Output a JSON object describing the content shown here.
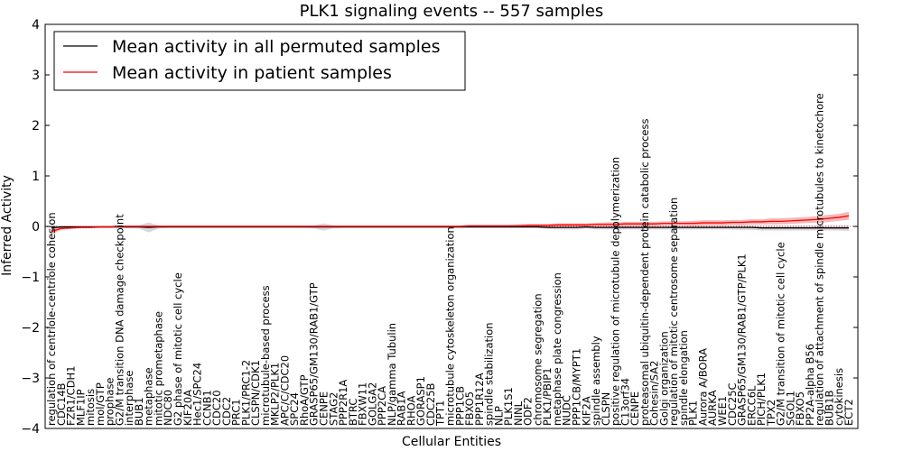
{
  "chart_data": {
    "type": "line",
    "title": "PLK1 signaling events -- 557 samples",
    "xlabel": "Cellular Entities",
    "ylabel": "Inferred Activity",
    "ylim": [
      -4,
      4
    ],
    "yticks": [
      -4,
      -3,
      -2,
      -1,
      0,
      1,
      2,
      3,
      4
    ],
    "legend_position": "top-left",
    "grid": false,
    "colors": {
      "permuted": "#000000",
      "patient": "#ff0000",
      "patient_band": "#f4a6a6",
      "permuted_band": "#c8c8d0"
    },
    "series": [
      {
        "name": "Mean activity in all permuted samples",
        "key": "permuted"
      },
      {
        "name": "Mean activity in patient samples",
        "key": "patient"
      }
    ],
    "categories": [
      "regulation of centriole-centriole cohesion",
      "CDC14B",
      "FZR1/CDH1",
      "MLF1IP",
      "mitosis",
      "mol/GTP",
      "prophase",
      "G2/M transition DNA damage checkpoint",
      "interphase",
      "BUB1",
      "metaphase",
      "mitotic prometaphase",
      "NDC80",
      "G2 phase of mitotic cell cycle",
      "KIF20A",
      "Hec1/SPC24",
      "CCNB1",
      "CDC20",
      "CDC2",
      "PRC1",
      "PLK1/PRC1-2",
      "CLSPN/CDK1",
      "microtubule-based process",
      "MKLP2/PLK1",
      "APC/C/CDC20",
      "SPC24",
      "RhoA/GTP",
      "GRASP65/GM130/RAB1/GTP",
      "CENPE",
      "STAG2",
      "PPP2R1A",
      "BTRC",
      "FBXW11",
      "GOLGA2",
      "PPP2CA",
      "NLP/gamma Tubulin",
      "RAB1A",
      "RHOA",
      "GORASP1",
      "CDC25B",
      "TPT1",
      "microtubule cytoskeleton organization",
      "PPP1CB",
      "FBXO5",
      "PPP1R12A",
      "spindle stabilization",
      "NLP",
      "PLK1S1",
      "NINL",
      "ODF2",
      "chromosome segregation",
      "PLK1/PBIP1",
      "metaphase plate congression",
      "NUDC",
      "PPP1CB/MYPT1",
      "KIF2A",
      "spindle assembly",
      "CLSPN",
      "positive regulation of microtubule depolymerization",
      "C13orf34",
      "CENPE",
      "proteasomal ubiquitin-dependent protein catabolic process",
      "Cohesin/SA2",
      "Golgi organization",
      "regulation of mitotic centrosome separation",
      "spindle elongation",
      "PLK1",
      "Aurora A/BORA",
      "AURKA",
      "WEE1",
      "CDC25C",
      "GRASP65/GM130/RAB1/GTP/PLK1",
      "ERCC6L",
      "PICH/PLK1",
      "TPX2",
      "G2/M transition of mitotic cell cycle",
      "SGOL1",
      "FBXO5",
      "PP2A-alpha B56",
      "regulation of attachment of spindle microtubules to kinetochore",
      "BUB1B",
      "cytokinesis",
      "ECT2"
    ],
    "patient_mean": [
      -0.1,
      -0.04,
      -0.03,
      -0.02,
      -0.02,
      -0.01,
      -0.01,
      0,
      0,
      0,
      0,
      0,
      0,
      0,
      0,
      0,
      0,
      0,
      0,
      0,
      0,
      0,
      0,
      0,
      0,
      0,
      0,
      0,
      0,
      0,
      0,
      0,
      0,
      0,
      0,
      0,
      0,
      0,
      0,
      0,
      0,
      0,
      0,
      0.01,
      0.01,
      0.01,
      0.01,
      0.01,
      0.01,
      0.02,
      0.02,
      0.02,
      0.03,
      0.03,
      0.03,
      0.03,
      0.04,
      0.04,
      0.04,
      0.05,
      0.05,
      0.05,
      0.05,
      0.06,
      0.06,
      0.06,
      0.06,
      0.07,
      0.07,
      0.07,
      0.08,
      0.08,
      0.09,
      0.09,
      0.1,
      0.1,
      0.11,
      0.12,
      0.13,
      0.14,
      0.16,
      0.18,
      0.21
    ],
    "patient_band_halfwidth": [
      0.06,
      0.03,
      0.02,
      0.02,
      0.02,
      0.02,
      0.02,
      0.02,
      0.02,
      0.02,
      0.02,
      0.02,
      0.02,
      0.02,
      0.02,
      0.02,
      0.02,
      0.02,
      0.02,
      0.02,
      0.02,
      0.02,
      0.02,
      0.02,
      0.02,
      0.02,
      0.02,
      0.02,
      0.02,
      0.02,
      0.02,
      0.02,
      0.02,
      0.02,
      0.02,
      0.02,
      0.02,
      0.02,
      0.02,
      0.02,
      0.02,
      0.02,
      0.02,
      0.02,
      0.02,
      0.02,
      0.02,
      0.02,
      0.03,
      0.03,
      0.03,
      0.03,
      0.03,
      0.03,
      0.03,
      0.03,
      0.03,
      0.04,
      0.04,
      0.04,
      0.04,
      0.04,
      0.04,
      0.04,
      0.04,
      0.04,
      0.05,
      0.05,
      0.05,
      0.05,
      0.05,
      0.05,
      0.05,
      0.05,
      0.06,
      0.06,
      0.06,
      0.06,
      0.06,
      0.07,
      0.07,
      0.07,
      0.08
    ],
    "permuted_mean": [
      -0.03,
      -0.01,
      -0.01,
      -0.01,
      -0.01,
      -0.01,
      -0.01,
      -0.01,
      -0.01,
      -0.01,
      -0.02,
      -0.01,
      -0.01,
      -0.01,
      -0.01,
      -0.01,
      -0.01,
      -0.01,
      -0.01,
      -0.01,
      -0.01,
      -0.01,
      -0.01,
      -0.01,
      -0.01,
      -0.01,
      -0.01,
      -0.01,
      -0.01,
      -0.01,
      -0.01,
      -0.01,
      -0.01,
      -0.01,
      -0.01,
      -0.01,
      -0.01,
      -0.01,
      -0.01,
      -0.01,
      -0.01,
      -0.01,
      -0.01,
      -0.01,
      -0.01,
      -0.01,
      -0.01,
      -0.01,
      -0.01,
      -0.01,
      -0.01,
      -0.02,
      -0.02,
      -0.02,
      -0.02,
      -0.01,
      -0.02,
      -0.02,
      -0.02,
      -0.02,
      -0.02,
      -0.02,
      -0.02,
      -0.02,
      -0.02,
      -0.02,
      -0.02,
      -0.02,
      -0.02,
      -0.02,
      -0.02,
      -0.02,
      -0.02,
      -0.03,
      -0.03,
      -0.03,
      -0.03,
      -0.03,
      -0.03,
      -0.03,
      -0.03,
      -0.03,
      -0.03
    ],
    "permuted_band_halfwidth": [
      0.06,
      0.02,
      0.02,
      0.02,
      0.02,
      0.02,
      0.02,
      0.02,
      0.03,
      0.03,
      0.1,
      0.03,
      0.02,
      0.02,
      0.02,
      0.02,
      0.02,
      0.02,
      0.02,
      0.02,
      0.02,
      0.02,
      0.02,
      0.02,
      0.02,
      0.02,
      0.02,
      0.03,
      0.07,
      0.03,
      0.02,
      0.02,
      0.02,
      0.02,
      0.02,
      0.02,
      0.02,
      0.02,
      0.02,
      0.02,
      0.02,
      0.02,
      0.02,
      0.02,
      0.02,
      0.02,
      0.02,
      0.02,
      0.02,
      0.02,
      0.02,
      0.03,
      0.04,
      0.04,
      0.04,
      0.03,
      0.04,
      0.04,
      0.04,
      0.04,
      0.04,
      0.04,
      0.04,
      0.04,
      0.04,
      0.04,
      0.04,
      0.04,
      0.04,
      0.04,
      0.04,
      0.05,
      0.05,
      0.05,
      0.05,
      0.05,
      0.05,
      0.05,
      0.05,
      0.05,
      0.05,
      0.05,
      0.06
    ]
  }
}
